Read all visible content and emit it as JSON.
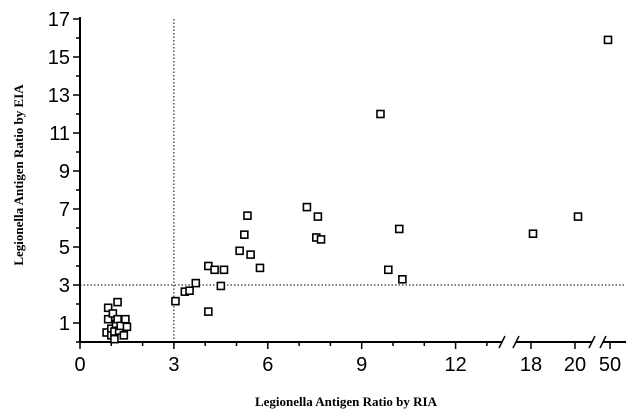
{
  "chart_data": {
    "type": "scatter",
    "title": "",
    "xlabel": "Legionella Antigen Ratio by RIA",
    "ylabel": "Legionella Antigen Ratio by EIA",
    "ylim": [
      0,
      17
    ],
    "xlim": [
      0,
      14
    ],
    "x_axis_breaks": [
      "14-18",
      "20-50"
    ],
    "grid": false,
    "legend": "none",
    "marker": "open-square",
    "x_ticks": [
      {
        "label": "0",
        "value": 0
      },
      {
        "label": "3",
        "value": 3
      },
      {
        "label": "6",
        "value": 6
      },
      {
        "label": "9",
        "value": 9
      },
      {
        "label": "12",
        "value": 12
      },
      {
        "label": "18",
        "value": 18
      },
      {
        "label": "20",
        "value": 20
      },
      {
        "label": "50",
        "value": 50
      }
    ],
    "y_ticks": [
      "1",
      "3",
      "5",
      "7",
      "9",
      "11",
      "13",
      "15",
      "17"
    ],
    "reference_lines": {
      "x": 3,
      "y": 3
    },
    "series": [
      {
        "points": [
          {
            "x": 0.85,
            "y": 0.5
          },
          {
            "x": 0.9,
            "y": 1.8
          },
          {
            "x": 0.9,
            "y": 1.2
          },
          {
            "x": 1.0,
            "y": 0.7
          },
          {
            "x": 1.0,
            "y": 0.35
          },
          {
            "x": 1.05,
            "y": 1.5
          },
          {
            "x": 1.1,
            "y": 0.55
          },
          {
            "x": 1.1,
            "y": 0.15
          },
          {
            "x": 1.15,
            "y": 0.95
          },
          {
            "x": 1.2,
            "y": 2.1
          },
          {
            "x": 1.2,
            "y": 1.2
          },
          {
            "x": 1.25,
            "y": 0.6
          },
          {
            "x": 1.3,
            "y": 0.85
          },
          {
            "x": 1.4,
            "y": 0.35
          },
          {
            "x": 1.45,
            "y": 1.2
          },
          {
            "x": 1.5,
            "y": 0.8
          },
          {
            "x": 3.05,
            "y": 2.15
          },
          {
            "x": 3.35,
            "y": 2.65
          },
          {
            "x": 3.5,
            "y": 2.7
          },
          {
            "x": 3.7,
            "y": 3.1
          },
          {
            "x": 4.1,
            "y": 1.6
          },
          {
            "x": 4.1,
            "y": 4.0
          },
          {
            "x": 4.3,
            "y": 3.8
          },
          {
            "x": 4.5,
            "y": 2.95
          },
          {
            "x": 4.6,
            "y": 3.8
          },
          {
            "x": 5.1,
            "y": 4.8
          },
          {
            "x": 5.25,
            "y": 5.65
          },
          {
            "x": 5.35,
            "y": 6.65
          },
          {
            "x": 5.45,
            "y": 4.6
          },
          {
            "x": 5.75,
            "y": 3.9
          },
          {
            "x": 7.25,
            "y": 7.1
          },
          {
            "x": 7.55,
            "y": 5.5
          },
          {
            "x": 7.6,
            "y": 6.6
          },
          {
            "x": 7.7,
            "y": 5.4
          },
          {
            "x": 9.6,
            "y": 12.0
          },
          {
            "x": 9.85,
            "y": 3.8
          },
          {
            "x": 10.2,
            "y": 5.95
          },
          {
            "x": 10.3,
            "y": 3.3
          },
          {
            "x": 18,
            "y": 5.7
          },
          {
            "x": 20,
            "y": 6.6
          },
          {
            "x": 50,
            "y": 15.9
          }
        ]
      }
    ]
  }
}
